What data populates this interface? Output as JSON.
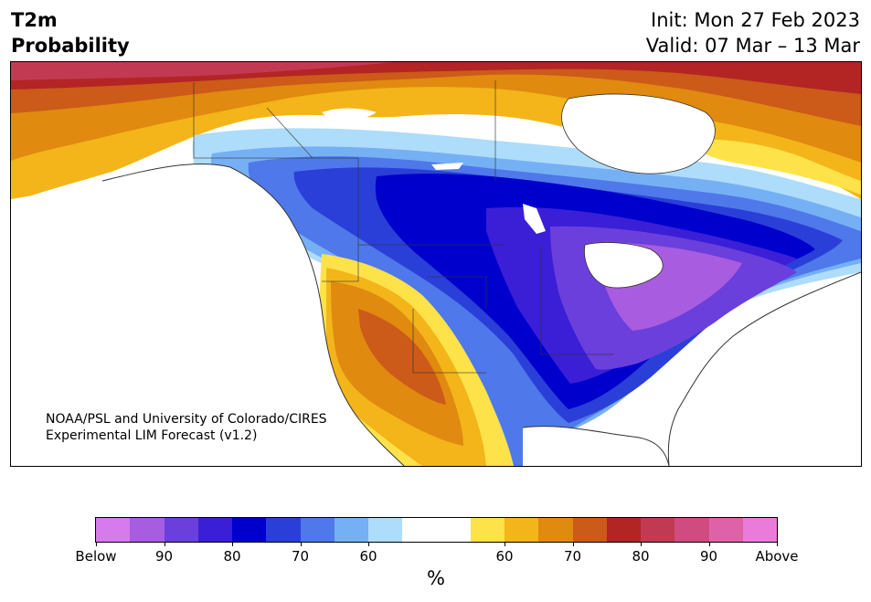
{
  "header": {
    "title_line1": "T2m",
    "title_line2": "Probability",
    "init": "Init: Mon 27 Feb 2023",
    "valid": "Valid: 07 Mar – 13 Mar"
  },
  "map": {
    "credit_line1": "NOAA/PSL and University of Colorado/CIRES",
    "credit_line2": "Experimental LIM Forecast (v1.2)",
    "region": "North America"
  },
  "colorbar": {
    "units": "%",
    "colors": [
      "#d57bec",
      "#a85ce0",
      "#6a3fdc",
      "#3a1fd7",
      "#0000cc",
      "#2a3fd8",
      "#4f78ea",
      "#76b0f4",
      "#aedcfb",
      "#ffffff",
      "#ffffff",
      "#fee24a",
      "#f3b51a",
      "#e08a10",
      "#cc5a18",
      "#b32424",
      "#c23a52",
      "#d04b7f",
      "#de62a8",
      "#ea7bdb"
    ],
    "tick_labels": [
      "Below",
      "90",
      "80",
      "70",
      "60",
      "60",
      "70",
      "80",
      "90",
      "Above"
    ]
  }
}
